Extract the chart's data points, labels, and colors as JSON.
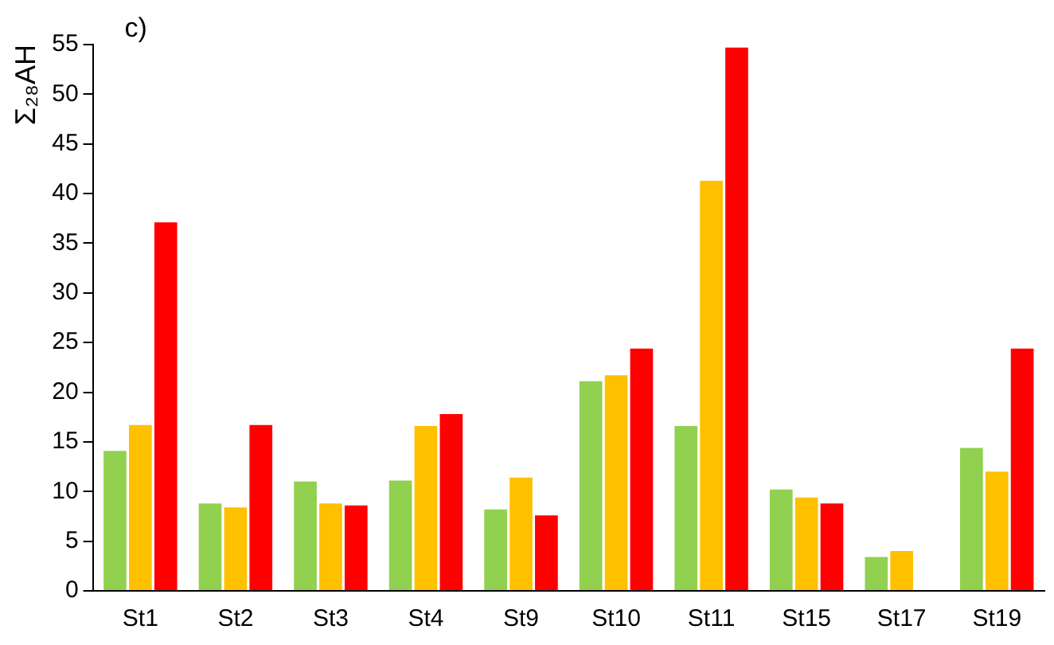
{
  "chart_data": {
    "type": "bar",
    "ylabel": "Σ₂₈AH",
    "annotations": [
      "c)"
    ],
    "categories": [
      "St1",
      "St2",
      "St3",
      "St4",
      "St9",
      "St10",
      "St11",
      "St15",
      "St17",
      "St19"
    ],
    "series": [
      {
        "color": "#92d050",
        "values": [
          14.1,
          8.8,
          11.0,
          11.1,
          8.2,
          21.1,
          16.6,
          10.2,
          3.4,
          14.4
        ]
      },
      {
        "color": "#ffc000",
        "values": [
          16.7,
          8.4,
          8.8,
          16.6,
          11.4,
          21.7,
          41.3,
          9.4,
          4.0,
          12.0
        ]
      },
      {
        "color": "#ff0000",
        "values": [
          37.1,
          16.7,
          8.6,
          17.8,
          7.6,
          24.4,
          54.7,
          8.8,
          null,
          24.4
        ]
      }
    ],
    "ylim": [
      0,
      55
    ],
    "yticks": [
      0,
      5,
      10,
      15,
      20,
      25,
      30,
      35,
      40,
      45,
      50,
      55
    ],
    "grid": false,
    "legend": false
  }
}
